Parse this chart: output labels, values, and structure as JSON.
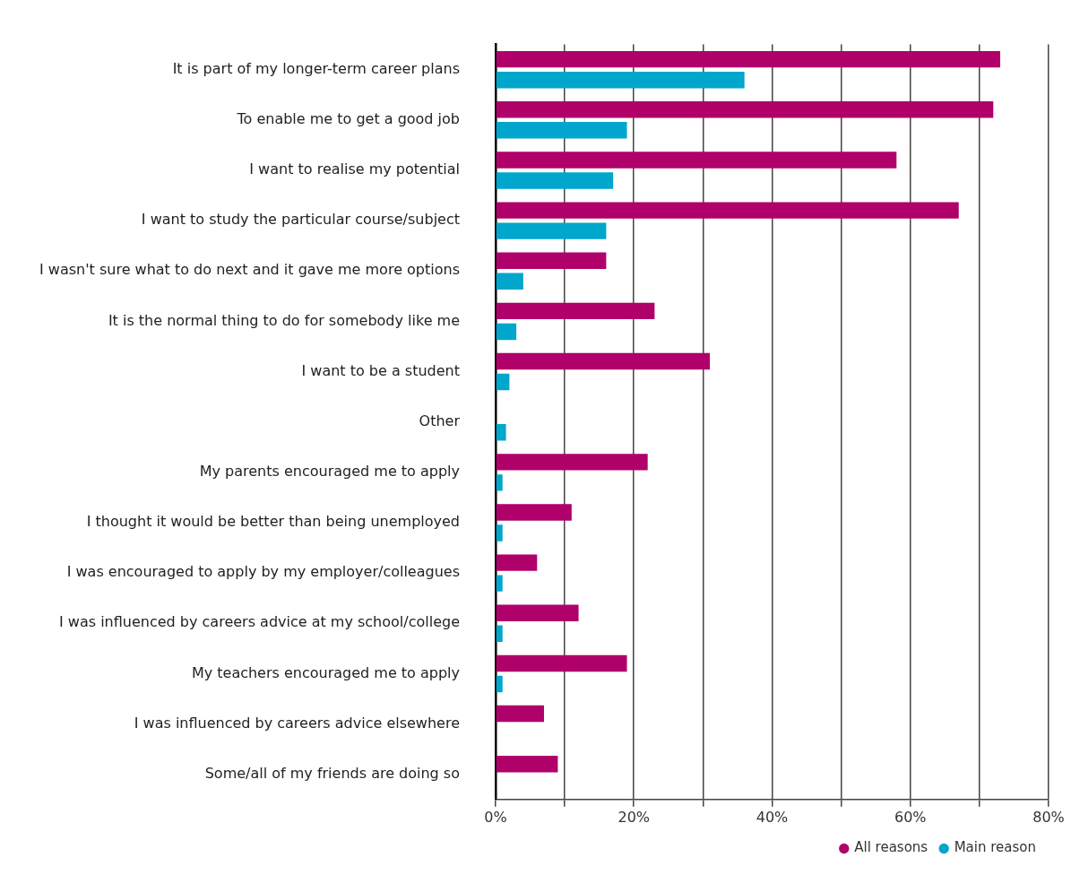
{
  "chart_data": {
    "type": "bar",
    "orientation": "horizontal",
    "categories": [
      "It is part of my longer-term career plans",
      "To enable me to get a good job",
      "I want to realise my potential",
      "I want to study the particular course/subject",
      "I wasn't sure what to do next and it gave me more options",
      "It is the normal thing to do for somebody like me",
      "I want to be a student",
      "Other",
      "My parents encouraged me to apply",
      "I thought it would be better than being unemployed",
      "I was encouraged to apply by my employer/colleagues",
      "I was influenced by careers advice at my school/college",
      "My teachers encouraged me to apply",
      "I was influenced by careers advice elsewhere",
      "Some/all of my friends are doing so"
    ],
    "series": [
      {
        "name": "All reasons",
        "color": "#b0006a",
        "values": [
          73,
          72,
          58,
          67,
          16,
          23,
          31,
          null,
          22,
          11,
          6,
          12,
          19,
          7,
          9
        ]
      },
      {
        "name": "Main reason",
        "color": "#00a6cc",
        "values": [
          36,
          19,
          17,
          16,
          4,
          3,
          2,
          1.5,
          1,
          1,
          1,
          1,
          1,
          null,
          null
        ]
      }
    ],
    "xlim": [
      0,
      80
    ],
    "xticks": [
      {
        "value": 0,
        "label": "0%"
      },
      {
        "value": 10,
        "label": null
      },
      {
        "value": 20,
        "label": "20%"
      },
      {
        "value": 30,
        "label": null
      },
      {
        "value": 40,
        "label": "40%"
      },
      {
        "value": 50,
        "label": null
      },
      {
        "value": 60,
        "label": "60%"
      },
      {
        "value": 70,
        "label": null
      },
      {
        "value": 80,
        "label": "80%"
      }
    ],
    "grid": "x",
    "legend": "bottom"
  }
}
